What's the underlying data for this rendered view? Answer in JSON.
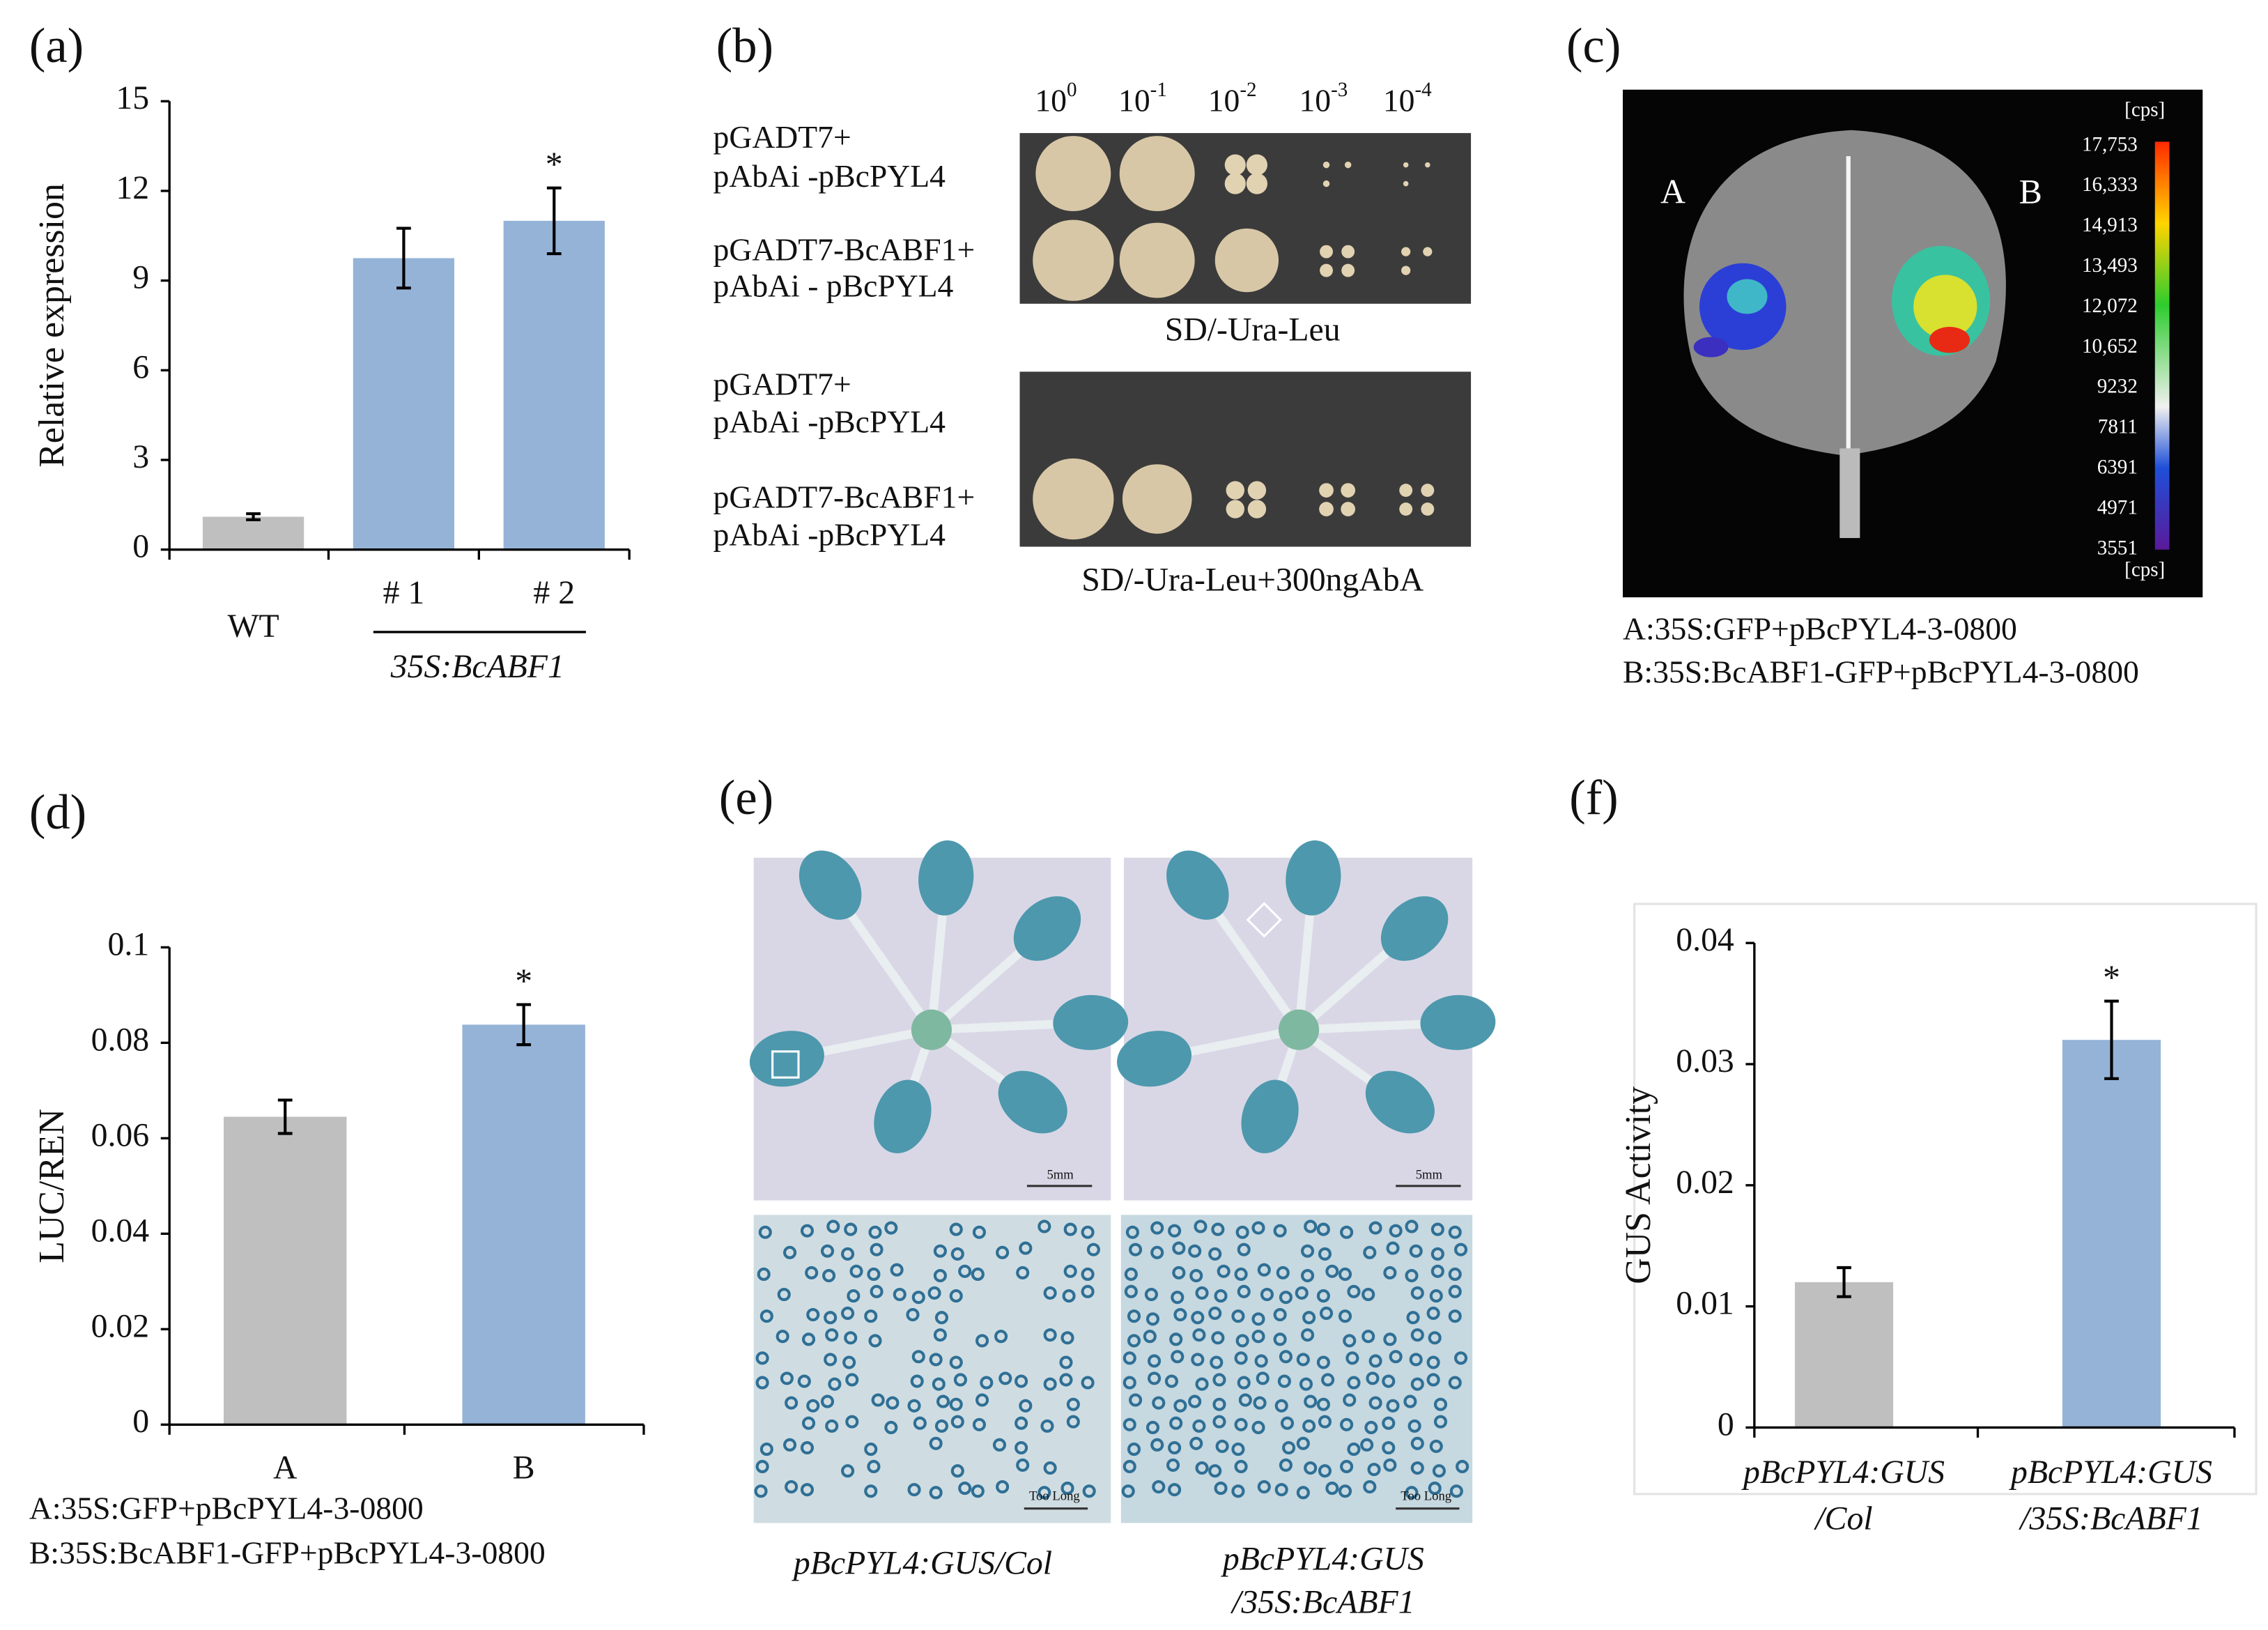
{
  "panel_labels": [
    "(a)",
    "(b)",
    "(c)",
    "(d)",
    "(e)",
    "(f)"
  ],
  "chart_data": [
    {
      "type": "bar",
      "ylabel": "Relative expression",
      "categories": [
        "WT",
        "# 1",
        "# 2"
      ],
      "group_label": "35S:BcABF1",
      "values": [
        1.1,
        9.75,
        11.0
      ],
      "errors": [
        0.1,
        1.0,
        1.1
      ],
      "colors": [
        "#bfbfbf",
        "#95b3d7",
        "#95b3d7"
      ],
      "significance": [
        null,
        null,
        "*"
      ],
      "ylim": [
        0,
        15
      ],
      "yticks": [
        0,
        3,
        6,
        9,
        12,
        15
      ]
    },
    {
      "type": "bar",
      "ylabel": "LUC/REN",
      "categories": [
        "A",
        "B"
      ],
      "values": [
        0.0645,
        0.0838
      ],
      "errors": [
        0.0035,
        0.0042
      ],
      "colors": [
        "#bfbfbf",
        "#95b3d7"
      ],
      "significance": [
        null,
        "*"
      ],
      "ylim": [
        0,
        0.1
      ],
      "yticks": [
        0,
        0.02,
        0.04,
        0.06,
        0.08,
        0.1
      ],
      "notes": [
        "A:35S:GFP+pBcPYL4-3-0800",
        "B:35S:BcABF1-GFP+pBcPYL4-3-0800"
      ]
    },
    {
      "type": "bar",
      "ylabel": "GUS Activity",
      "categories": [
        [
          "pBcPYL4:GUS",
          "/Col"
        ],
        [
          "pBcPYL4:GUS",
          "/35S:BcABF1"
        ]
      ],
      "values": [
        0.012,
        0.032
      ],
      "errors": [
        0.0012,
        0.0032
      ],
      "colors": [
        "#bfbfbf",
        "#95b3d7"
      ],
      "significance": [
        null,
        "*"
      ],
      "ylim": [
        0,
        0.04
      ],
      "yticks": [
        0,
        0.01,
        0.02,
        0.03,
        0.04
      ]
    }
  ],
  "panel_b": {
    "dilutions": [
      {
        "base": "10",
        "exponent": "0"
      },
      {
        "base": "10",
        "exponent": "-1"
      },
      {
        "base": "10",
        "exponent": "-2"
      },
      {
        "base": "10",
        "exponent": "-3"
      },
      {
        "base": "10",
        "exponent": "-4"
      }
    ],
    "plates": [
      {
        "rows": [
          [
            "pGADT7+",
            "pAbAi -pBcPYL4"
          ],
          [
            "pGADT7-BcABF1+",
            "pAbAi - pBcPYL4"
          ]
        ],
        "caption": "SD/-Ura-Leu"
      },
      {
        "rows": [
          [
            "pGADT7+",
            "pAbAi -pBcPYL4"
          ],
          [
            "pGADT7-BcABF1+",
            "pAbAi -pBcPYL4"
          ]
        ],
        "caption": "SD/-Ura-Leu+300ngAbA"
      }
    ]
  },
  "panel_c": {
    "side_labels": [
      "A",
      "B"
    ],
    "colorbar_unit": "[cps]",
    "colorbar_labels": [
      "17,753",
      "16,333",
      "14,913",
      "13,493",
      "12,072",
      "10,652",
      "9232",
      "7811",
      "6391",
      "4971",
      "3551"
    ],
    "notes": [
      "A:35S:GFP+pBcPYL4-3-0800",
      "B:35S:BcABF1-GFP+pBcPYL4-3-0800"
    ]
  },
  "panel_e": {
    "scale_labels": [
      "5mm",
      "5mm",
      "Too Long",
      "Too Long"
    ],
    "captions": [
      [
        "pBcPYL4:GUS/Col"
      ],
      [
        "pBcPYL4:GUS",
        "/35S:BcABF1"
      ]
    ]
  }
}
